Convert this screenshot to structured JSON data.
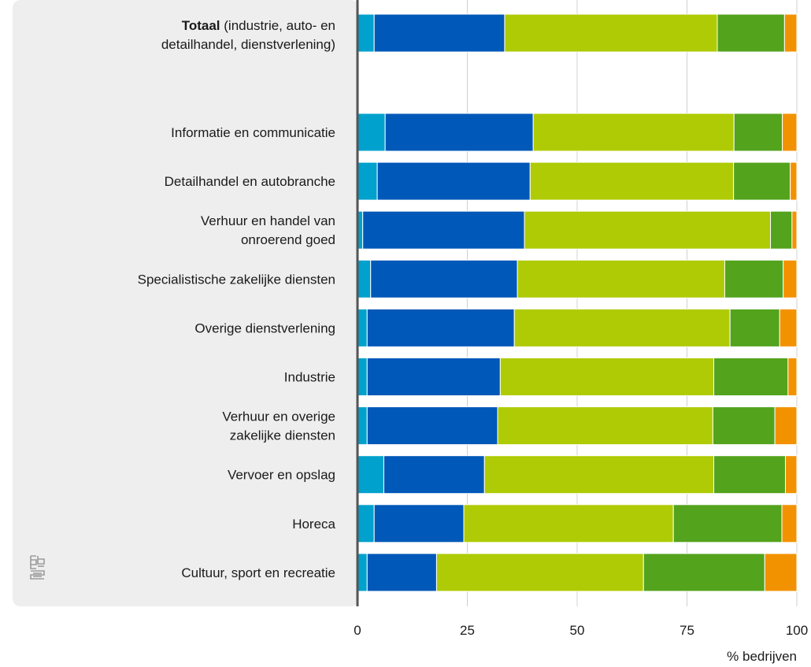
{
  "chart_data": {
    "type": "bar",
    "orientation": "horizontal",
    "stacked": true,
    "xlabel": "% bedrijven",
    "xlim": [
      0,
      100
    ],
    "xticks": [
      0,
      25,
      50,
      75,
      100
    ],
    "grid": true,
    "categories": [
      "Totaal (industrie, auto- en detailhandel, dienstverlening)",
      "Informatie en communicatie",
      "Detailhandel en autobranche",
      "Verhuur en handel van onroerend goed",
      "Specialistische zakelijke diensten",
      "Overige dienstverlening",
      "Industrie",
      "Verhuur en overige zakelijke diensten",
      "Vervoer en opslag",
      "Horeca",
      "Cultuur, sport en recreatie"
    ],
    "category_lines": [
      [
        {
          "text": "Totaal",
          "bold": true
        },
        {
          "text": " (industrie, auto- en",
          "bold": false
        }
      ],
      [
        {
          "text": "detailhandel, dienstverlening)",
          "bold": false
        }
      ]
    ],
    "series": [
      {
        "color": "#00a1cd",
        "values": [
          3.8,
          6.3,
          4.5,
          1.2,
          3.0,
          2.2,
          2.2,
          2.2,
          6.0,
          3.8,
          2.2
        ]
      },
      {
        "color": "#0058b8",
        "values": [
          29.7,
          33.7,
          34.8,
          36.8,
          33.4,
          33.5,
          30.3,
          29.7,
          22.9,
          20.4,
          15.8
        ]
      },
      {
        "color": "#afcb05",
        "values": [
          48.4,
          45.7,
          46.3,
          56.0,
          47.2,
          49.1,
          48.6,
          49.0,
          52.2,
          47.7,
          47.1
        ]
      },
      {
        "color": "#53a31d",
        "values": [
          15.3,
          11.0,
          12.9,
          4.9,
          13.3,
          11.3,
          16.9,
          14.1,
          16.3,
          24.7,
          27.6
        ]
      },
      {
        "color": "#f39200",
        "values": [
          2.8,
          3.3,
          1.5,
          1.1,
          3.1,
          3.9,
          2.0,
          5.0,
          2.6,
          3.4,
          7.3
        ]
      }
    ],
    "logo": "cbs"
  }
}
